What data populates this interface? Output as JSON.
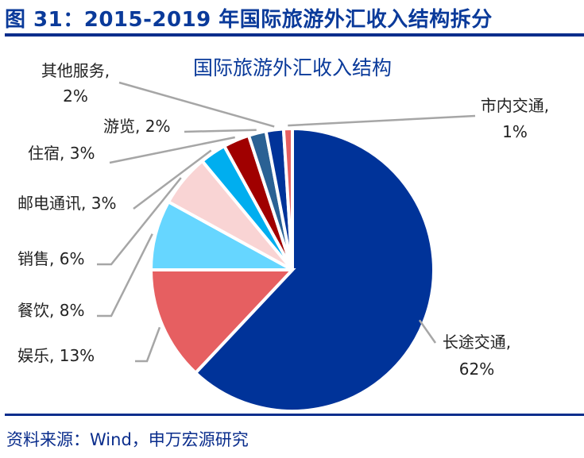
{
  "header": {
    "title": "图 31：2015-2019 年国际旅游外汇收入结构拆分"
  },
  "footer": {
    "source": "资料来源：Wind，申万宏源研究"
  },
  "chart_data": {
    "type": "pie",
    "title": "国际旅游外汇收入结构",
    "start": "12 o'clock, clockwise",
    "slices": [
      {
        "label": "长途交通",
        "value": 62,
        "display": "62%",
        "color": "#003399"
      },
      {
        "label": "娱乐",
        "value": 13,
        "display": "13%",
        "color": "#E65F61"
      },
      {
        "label": "餐饮",
        "value": 8,
        "display": "8%",
        "color": "#66D6FF"
      },
      {
        "label": "销售",
        "value": 6,
        "display": "6%",
        "color": "#F9D4D4"
      },
      {
        "label": "邮电通讯",
        "value": 3,
        "display": "3%",
        "color": "#00AEEF"
      },
      {
        "label": "住宿",
        "value": 3,
        "display": "3%",
        "color": "#A00000"
      },
      {
        "label": "游览",
        "value": 2,
        "display": "2%",
        "color": "#2A6194"
      },
      {
        "label": "其他服务",
        "value": 2,
        "display": "2%",
        "color": "#003399"
      },
      {
        "label": "市内交通",
        "value": 1,
        "display": "1%",
        "color": "#E65F61"
      }
    ]
  }
}
